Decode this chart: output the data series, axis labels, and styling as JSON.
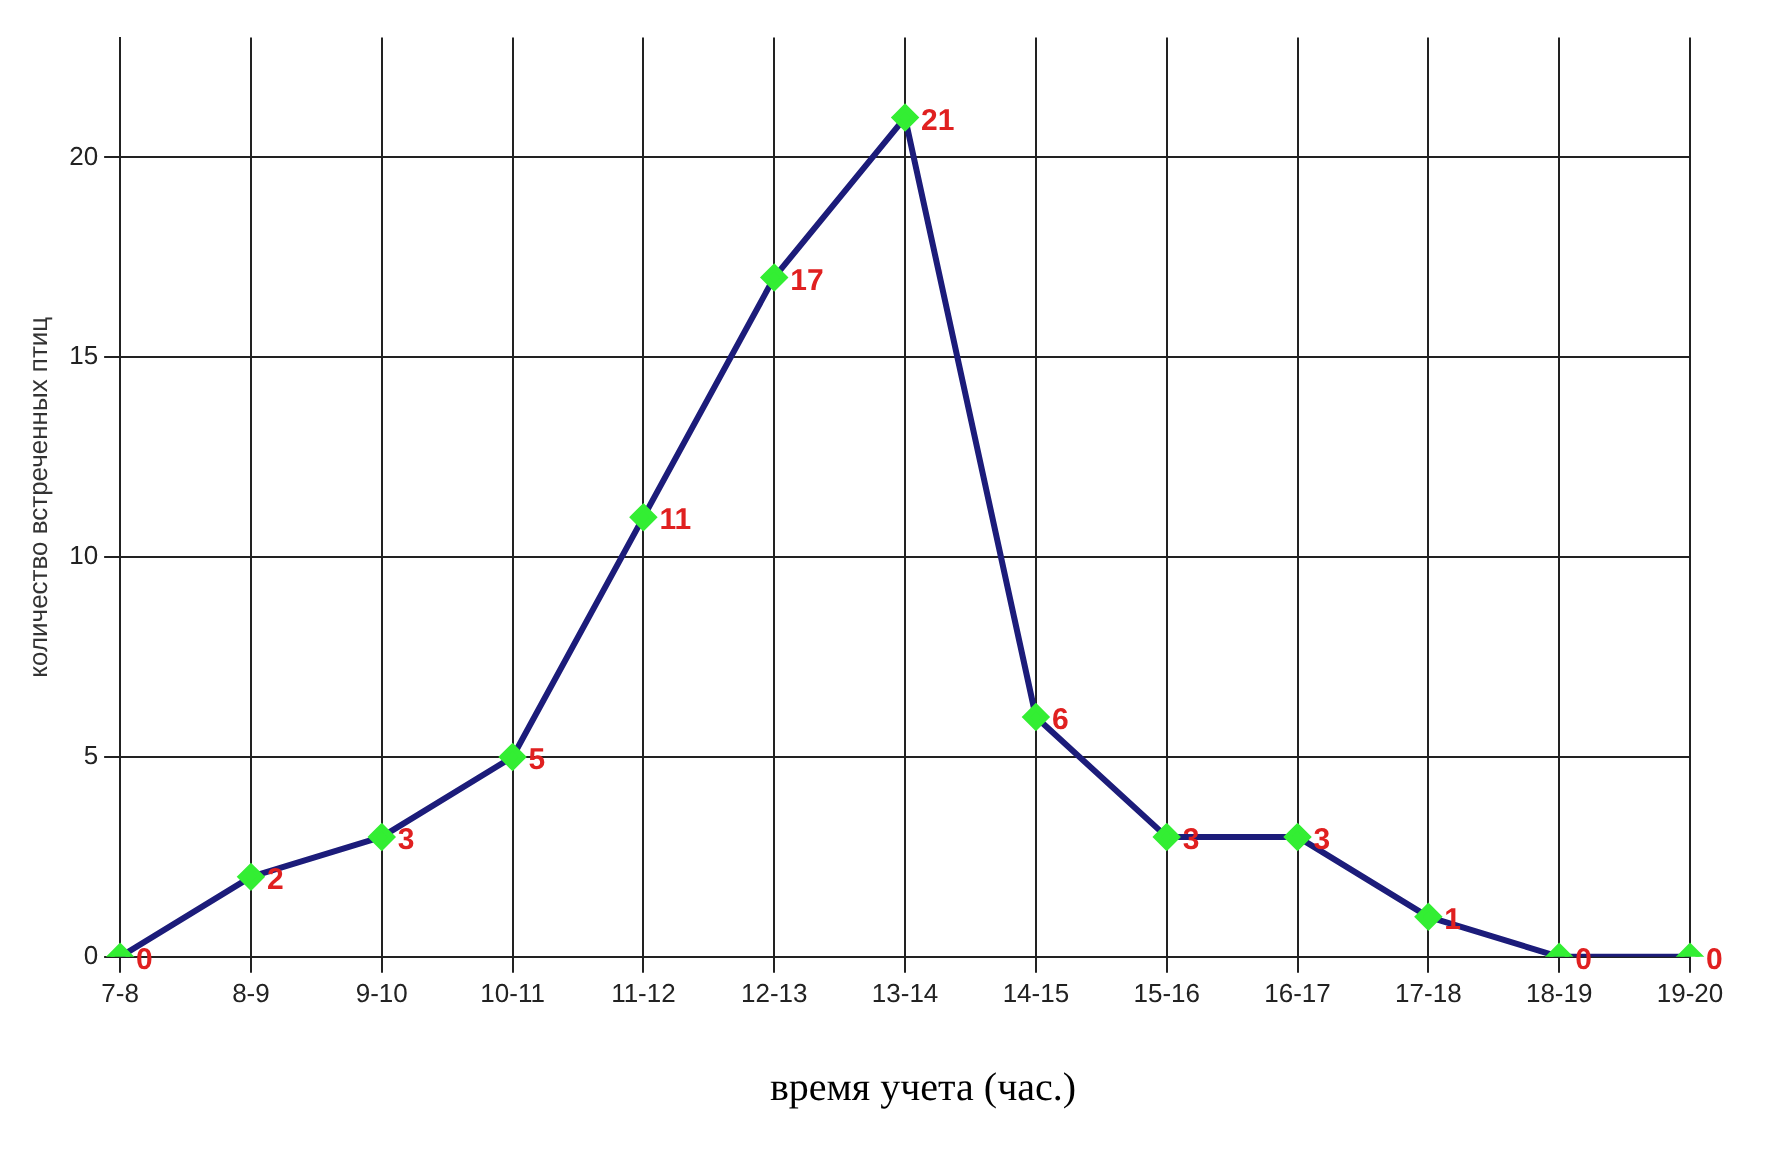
{
  "chart_data": {
    "type": "line",
    "xlabel": "время учета (час.)",
    "ylabel": "количество встреченных птиц",
    "categories": [
      "7-8",
      "8-9",
      "9-10",
      "10-11",
      "11-12",
      "12-13",
      "13-14",
      "14-15",
      "15-16",
      "16-17",
      "17-18",
      "18-19",
      "19-20"
    ],
    "series": [
      {
        "color": "#1c1c7a",
        "values": [
          0,
          2,
          3,
          5,
          11,
          17,
          21,
          6,
          3,
          3,
          1,
          0,
          0
        ]
      }
    ],
    "ylim": [
      0,
      23
    ],
    "yticks": [
      0,
      5,
      10,
      15,
      20
    ],
    "grid": true,
    "legend": false,
    "marker": "diamond",
    "line_style": "solid",
    "data_labels": true
  }
}
